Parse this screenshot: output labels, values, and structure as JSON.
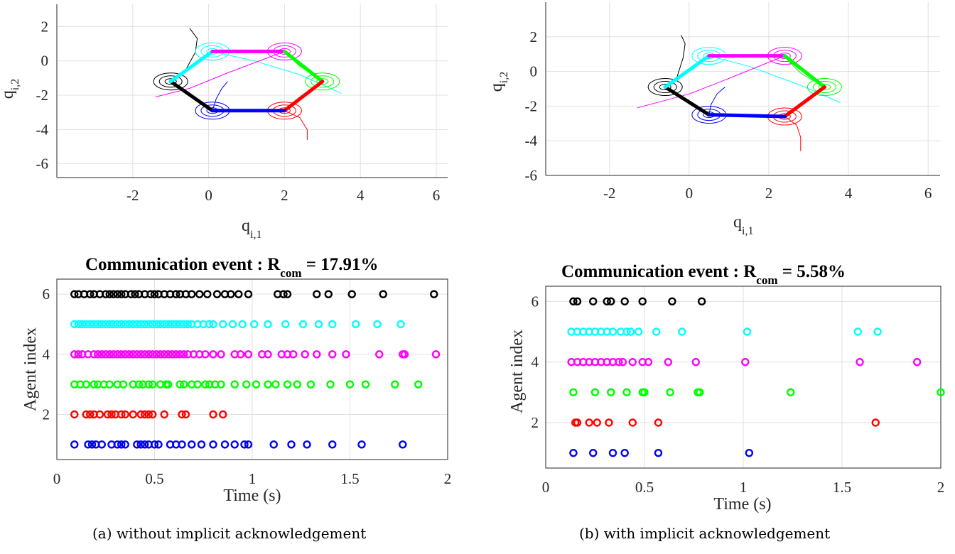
{
  "panels": [
    {
      "caption": "(a) without implicit acknowledgement",
      "trajectory": {
        "ylabel_main": "q",
        "ylabel_sub": "i,2",
        "xlabel_main": "q",
        "xlabel_sub": "i,1",
        "xlim": [
          -4,
          6.3
        ],
        "ylim": [
          -6.8,
          3.3
        ],
        "xticks": [
          -2,
          0,
          2,
          4,
          6
        ],
        "yticks": [
          -6,
          -4,
          -2,
          0,
          2
        ],
        "grid": true,
        "agents": [
          {
            "color": "#000000",
            "pos": [
              -1.0,
              -1.2
            ]
          },
          {
            "color": "#00ffff",
            "pos": [
              0.1,
              0.55
            ]
          },
          {
            "color": "#ff00ff",
            "pos": [
              2.0,
              0.55
            ]
          },
          {
            "color": "#00ff00",
            "pos": [
              3.0,
              -1.2
            ]
          },
          {
            "color": "#ff0000",
            "pos": [
              2.0,
              -2.9
            ]
          },
          {
            "color": "#0000ff",
            "pos": [
              0.1,
              -2.9
            ]
          }
        ],
        "links": [
          {
            "color": "#000000",
            "from": [
              -1.0,
              -1.2
            ],
            "to": [
              0.1,
              -2.9
            ]
          },
          {
            "color": "#00ffff",
            "from": [
              -1.0,
              -1.2
            ],
            "to": [
              0.1,
              0.55
            ]
          },
          {
            "color": "#ff00ff",
            "from": [
              0.1,
              0.55
            ],
            "to": [
              2.0,
              0.55
            ]
          },
          {
            "color": "#00ff00",
            "from": [
              2.0,
              0.55
            ],
            "to": [
              3.0,
              -1.2
            ]
          },
          {
            "color": "#ff0000",
            "from": [
              3.0,
              -1.2
            ],
            "to": [
              2.0,
              -2.9
            ]
          },
          {
            "color": "#0000ff",
            "from": [
              2.0,
              -2.9
            ],
            "to": [
              0.1,
              -2.9
            ]
          }
        ],
        "paths": [
          {
            "color": "#000000",
            "points": [
              [
                -1.0,
                -1.2
              ],
              [
                -0.6,
                -0.5
              ],
              [
                -0.35,
                0.5
              ],
              [
                -0.3,
                1.3
              ],
              [
                -0.5,
                1.9
              ]
            ]
          },
          {
            "color": "#00ffff",
            "points": [
              [
                0.1,
                0.55
              ],
              [
                1.2,
                0.0
              ],
              [
                2.4,
                -0.8
              ],
              [
                3.5,
                -1.9
              ]
            ]
          },
          {
            "color": "#ff00ff",
            "points": [
              [
                2.0,
                0.55
              ],
              [
                0.5,
                -0.7
              ],
              [
                -0.5,
                -1.6
              ],
              [
                -1.4,
                -2.1
              ]
            ]
          },
          {
            "color": "#00ff00",
            "points": [
              [
                3.0,
                -1.2
              ],
              [
                2.4,
                -0.3
              ],
              [
                2.1,
                0.3
              ],
              [
                2.0,
                0.55
              ]
            ]
          },
          {
            "color": "#ff0000",
            "points": [
              [
                2.0,
                -2.9
              ],
              [
                2.4,
                -3.3
              ],
              [
                2.6,
                -4.0
              ],
              [
                2.6,
                -4.6
              ]
            ]
          },
          {
            "color": "#0000ff",
            "points": [
              [
                0.1,
                -2.9
              ],
              [
                0.2,
                -2.2
              ],
              [
                0.35,
                -1.6
              ],
              [
                0.5,
                -1.2
              ]
            ]
          }
        ]
      },
      "events": {
        "title_main": "Communication event : R",
        "title_sub": "com",
        "title_tail": " = 17.91%",
        "xlabel": "Time (s)",
        "ylabel": "Agent index",
        "xlim": [
          0,
          2
        ],
        "ylim": [
          0.5,
          6.5
        ],
        "xticks": [
          0,
          0.5,
          1,
          1.5,
          2
        ],
        "xtick_labels": [
          "0",
          "0.5",
          "1",
          "1.5",
          "2"
        ],
        "yticks": [
          2,
          4,
          6
        ],
        "series": [
          {
            "agent": 6,
            "color": "#000000",
            "times": [
              0.09,
              0.11,
              0.14,
              0.17,
              0.19,
              0.22,
              0.25,
              0.27,
              0.29,
              0.31,
              0.33,
              0.35,
              0.38,
              0.4,
              0.42,
              0.45,
              0.48,
              0.5,
              0.52,
              0.55,
              0.58,
              0.61,
              0.63,
              0.66,
              0.69,
              0.73,
              0.77,
              0.82,
              0.86,
              0.89,
              0.93,
              0.98,
              1.13,
              1.16,
              1.18,
              1.33,
              1.39,
              1.51,
              1.67,
              1.93
            ]
          },
          {
            "agent": 5,
            "color": "#00ffff",
            "times": [
              0.09,
              0.11,
              0.13,
              0.15,
              0.17,
              0.19,
              0.21,
              0.23,
              0.25,
              0.27,
              0.29,
              0.31,
              0.33,
              0.35,
              0.37,
              0.39,
              0.41,
              0.43,
              0.45,
              0.47,
              0.49,
              0.51,
              0.53,
              0.55,
              0.57,
              0.59,
              0.61,
              0.63,
              0.65,
              0.67,
              0.69,
              0.72,
              0.75,
              0.78,
              0.8,
              0.85,
              0.9,
              0.95,
              1.01,
              1.08,
              1.17,
              1.26,
              1.34,
              1.41,
              1.53,
              1.64,
              1.76
            ]
          },
          {
            "agent": 4,
            "color": "#ff00ff",
            "times": [
              0.09,
              0.11,
              0.13,
              0.16,
              0.19,
              0.21,
              0.23,
              0.25,
              0.27,
              0.29,
              0.31,
              0.33,
              0.35,
              0.37,
              0.39,
              0.41,
              0.43,
              0.45,
              0.47,
              0.49,
              0.51,
              0.53,
              0.55,
              0.57,
              0.59,
              0.61,
              0.63,
              0.65,
              0.67,
              0.7,
              0.73,
              0.76,
              0.8,
              0.84,
              0.91,
              0.94,
              0.98,
              1.05,
              1.08,
              1.15,
              1.18,
              1.21,
              1.27,
              1.33,
              1.41,
              1.48,
              1.65,
              1.77,
              1.78,
              1.94
            ]
          },
          {
            "agent": 3,
            "color": "#00ff00",
            "times": [
              0.09,
              0.12,
              0.15,
              0.19,
              0.21,
              0.24,
              0.27,
              0.31,
              0.34,
              0.39,
              0.42,
              0.44,
              0.47,
              0.49,
              0.53,
              0.56,
              0.57,
              0.63,
              0.65,
              0.69,
              0.72,
              0.76,
              0.78,
              0.81,
              0.84,
              0.91,
              0.97,
              1.02,
              1.08,
              1.12,
              1.18,
              1.23,
              1.3,
              1.4,
              1.5,
              1.58,
              1.73,
              1.85
            ]
          },
          {
            "agent": 2,
            "color": "#ff0000",
            "times": [
              0.09,
              0.15,
              0.17,
              0.19,
              0.22,
              0.26,
              0.28,
              0.3,
              0.33,
              0.35,
              0.39,
              0.43,
              0.45,
              0.47,
              0.49,
              0.55,
              0.64,
              0.66,
              0.8,
              0.85
            ]
          },
          {
            "agent": 1,
            "color": "#0000ff",
            "times": [
              0.09,
              0.16,
              0.18,
              0.2,
              0.23,
              0.28,
              0.31,
              0.33,
              0.35,
              0.41,
              0.43,
              0.45,
              0.47,
              0.5,
              0.52,
              0.58,
              0.61,
              0.64,
              0.69,
              0.74,
              0.8,
              0.86,
              0.91,
              0.96,
              0.98,
              1.11,
              1.2,
              1.28,
              1.41,
              1.56,
              1.77
            ]
          }
        ]
      }
    },
    {
      "caption": "(b) with implicit acknowledgement",
      "trajectory": {
        "ylabel_main": "q",
        "ylabel_sub": "i,2",
        "xlabel_main": "q",
        "xlabel_sub": "i,1",
        "xlim": [
          -3.6,
          6.3
        ],
        "ylim": [
          -6,
          4
        ],
        "xticks": [
          -2,
          0,
          2,
          4,
          6
        ],
        "yticks": [
          -6,
          -4,
          -2,
          0,
          2
        ],
        "grid": true,
        "agents": [
          {
            "color": "#000000",
            "pos": [
              -0.6,
              -0.9
            ]
          },
          {
            "color": "#00ffff",
            "pos": [
              0.5,
              0.9
            ]
          },
          {
            "color": "#ff00ff",
            "pos": [
              2.4,
              0.9
            ]
          },
          {
            "color": "#00ff00",
            "pos": [
              3.4,
              -0.9
            ]
          },
          {
            "color": "#ff0000",
            "pos": [
              2.4,
              -2.6
            ]
          },
          {
            "color": "#0000ff",
            "pos": [
              0.5,
              -2.5
            ]
          }
        ],
        "links": [
          {
            "color": "#000000",
            "from": [
              -0.6,
              -0.9
            ],
            "to": [
              0.5,
              -2.5
            ]
          },
          {
            "color": "#00ffff",
            "from": [
              -0.6,
              -0.9
            ],
            "to": [
              0.5,
              0.9
            ]
          },
          {
            "color": "#ff00ff",
            "from": [
              0.5,
              0.9
            ],
            "to": [
              2.4,
              0.9
            ]
          },
          {
            "color": "#00ff00",
            "from": [
              2.4,
              0.9
            ],
            "to": [
              3.4,
              -0.9
            ]
          },
          {
            "color": "#ff0000",
            "from": [
              3.4,
              -0.9
            ],
            "to": [
              2.4,
              -2.6
            ]
          },
          {
            "color": "#0000ff",
            "from": [
              2.4,
              -2.6
            ],
            "to": [
              0.5,
              -2.5
            ]
          }
        ],
        "paths": [
          {
            "color": "#000000",
            "points": [
              [
                -0.6,
                -0.9
              ],
              [
                -0.3,
                -0.3
              ],
              [
                -0.15,
                0.8
              ],
              [
                -0.1,
                1.6
              ],
              [
                -0.2,
                2.1
              ]
            ]
          },
          {
            "color": "#00ffff",
            "points": [
              [
                0.5,
                0.9
              ],
              [
                1.5,
                0.3
              ],
              [
                2.8,
                -0.8
              ],
              [
                3.8,
                -1.8
              ]
            ]
          },
          {
            "color": "#ff00ff",
            "points": [
              [
                2.4,
                0.9
              ],
              [
                1.0,
                -0.4
              ],
              [
                0.0,
                -1.3
              ],
              [
                -1.3,
                -2.1
              ]
            ]
          },
          {
            "color": "#00ff00",
            "points": [
              [
                3.4,
                -0.9
              ],
              [
                2.8,
                -0.1
              ],
              [
                2.5,
                0.6
              ],
              [
                2.4,
                0.9
              ]
            ]
          },
          {
            "color": "#ff0000",
            "points": [
              [
                2.4,
                -2.6
              ],
              [
                2.7,
                -3.1
              ],
              [
                2.8,
                -3.8
              ],
              [
                2.8,
                -4.6
              ]
            ]
          },
          {
            "color": "#0000ff",
            "points": [
              [
                0.5,
                -2.5
              ],
              [
                0.55,
                -1.9
              ],
              [
                0.7,
                -1.3
              ],
              [
                0.9,
                -0.9
              ]
            ]
          }
        ]
      },
      "events": {
        "title_main": "Communication event : R",
        "title_sub": "com",
        "title_tail": " = 5.58%",
        "xlabel": "Time (s)",
        "ylabel": "Agent index",
        "xlim": [
          0,
          2
        ],
        "ylim": [
          0.5,
          6.5
        ],
        "xticks": [
          0,
          0.5,
          1,
          1.5,
          2
        ],
        "xtick_labels": [
          "0",
          "0.5",
          "1",
          "1.5",
          "2"
        ],
        "yticks": [
          2,
          4,
          6
        ],
        "series": [
          {
            "agent": 6,
            "color": "#000000",
            "times": [
              0.14,
              0.16,
              0.24,
              0.31,
              0.33,
              0.4,
              0.49,
              0.64,
              0.79
            ]
          },
          {
            "agent": 5,
            "color": "#00ffff",
            "times": [
              0.13,
              0.16,
              0.19,
              0.22,
              0.25,
              0.28,
              0.31,
              0.34,
              0.38,
              0.41,
              0.43,
              0.47,
              0.56,
              0.69,
              1.02,
              1.58,
              1.68
            ]
          },
          {
            "agent": 4,
            "color": "#ff00ff",
            "times": [
              0.13,
              0.16,
              0.19,
              0.22,
              0.25,
              0.28,
              0.31,
              0.34,
              0.37,
              0.39,
              0.44,
              0.49,
              0.52,
              0.62,
              0.76,
              1.01,
              1.59,
              1.88
            ]
          },
          {
            "agent": 3,
            "color": "#00ff00",
            "times": [
              0.14,
              0.25,
              0.33,
              0.41,
              0.49,
              0.5,
              0.63,
              0.77,
              0.78,
              1.24,
              2.0
            ]
          },
          {
            "agent": 2,
            "color": "#ff0000",
            "times": [
              0.15,
              0.16,
              0.22,
              0.26,
              0.32,
              0.44,
              0.57,
              1.67
            ]
          },
          {
            "agent": 1,
            "color": "#0000ff",
            "times": [
              0.14,
              0.24,
              0.34,
              0.4,
              0.57,
              1.03
            ]
          }
        ]
      }
    }
  ]
}
